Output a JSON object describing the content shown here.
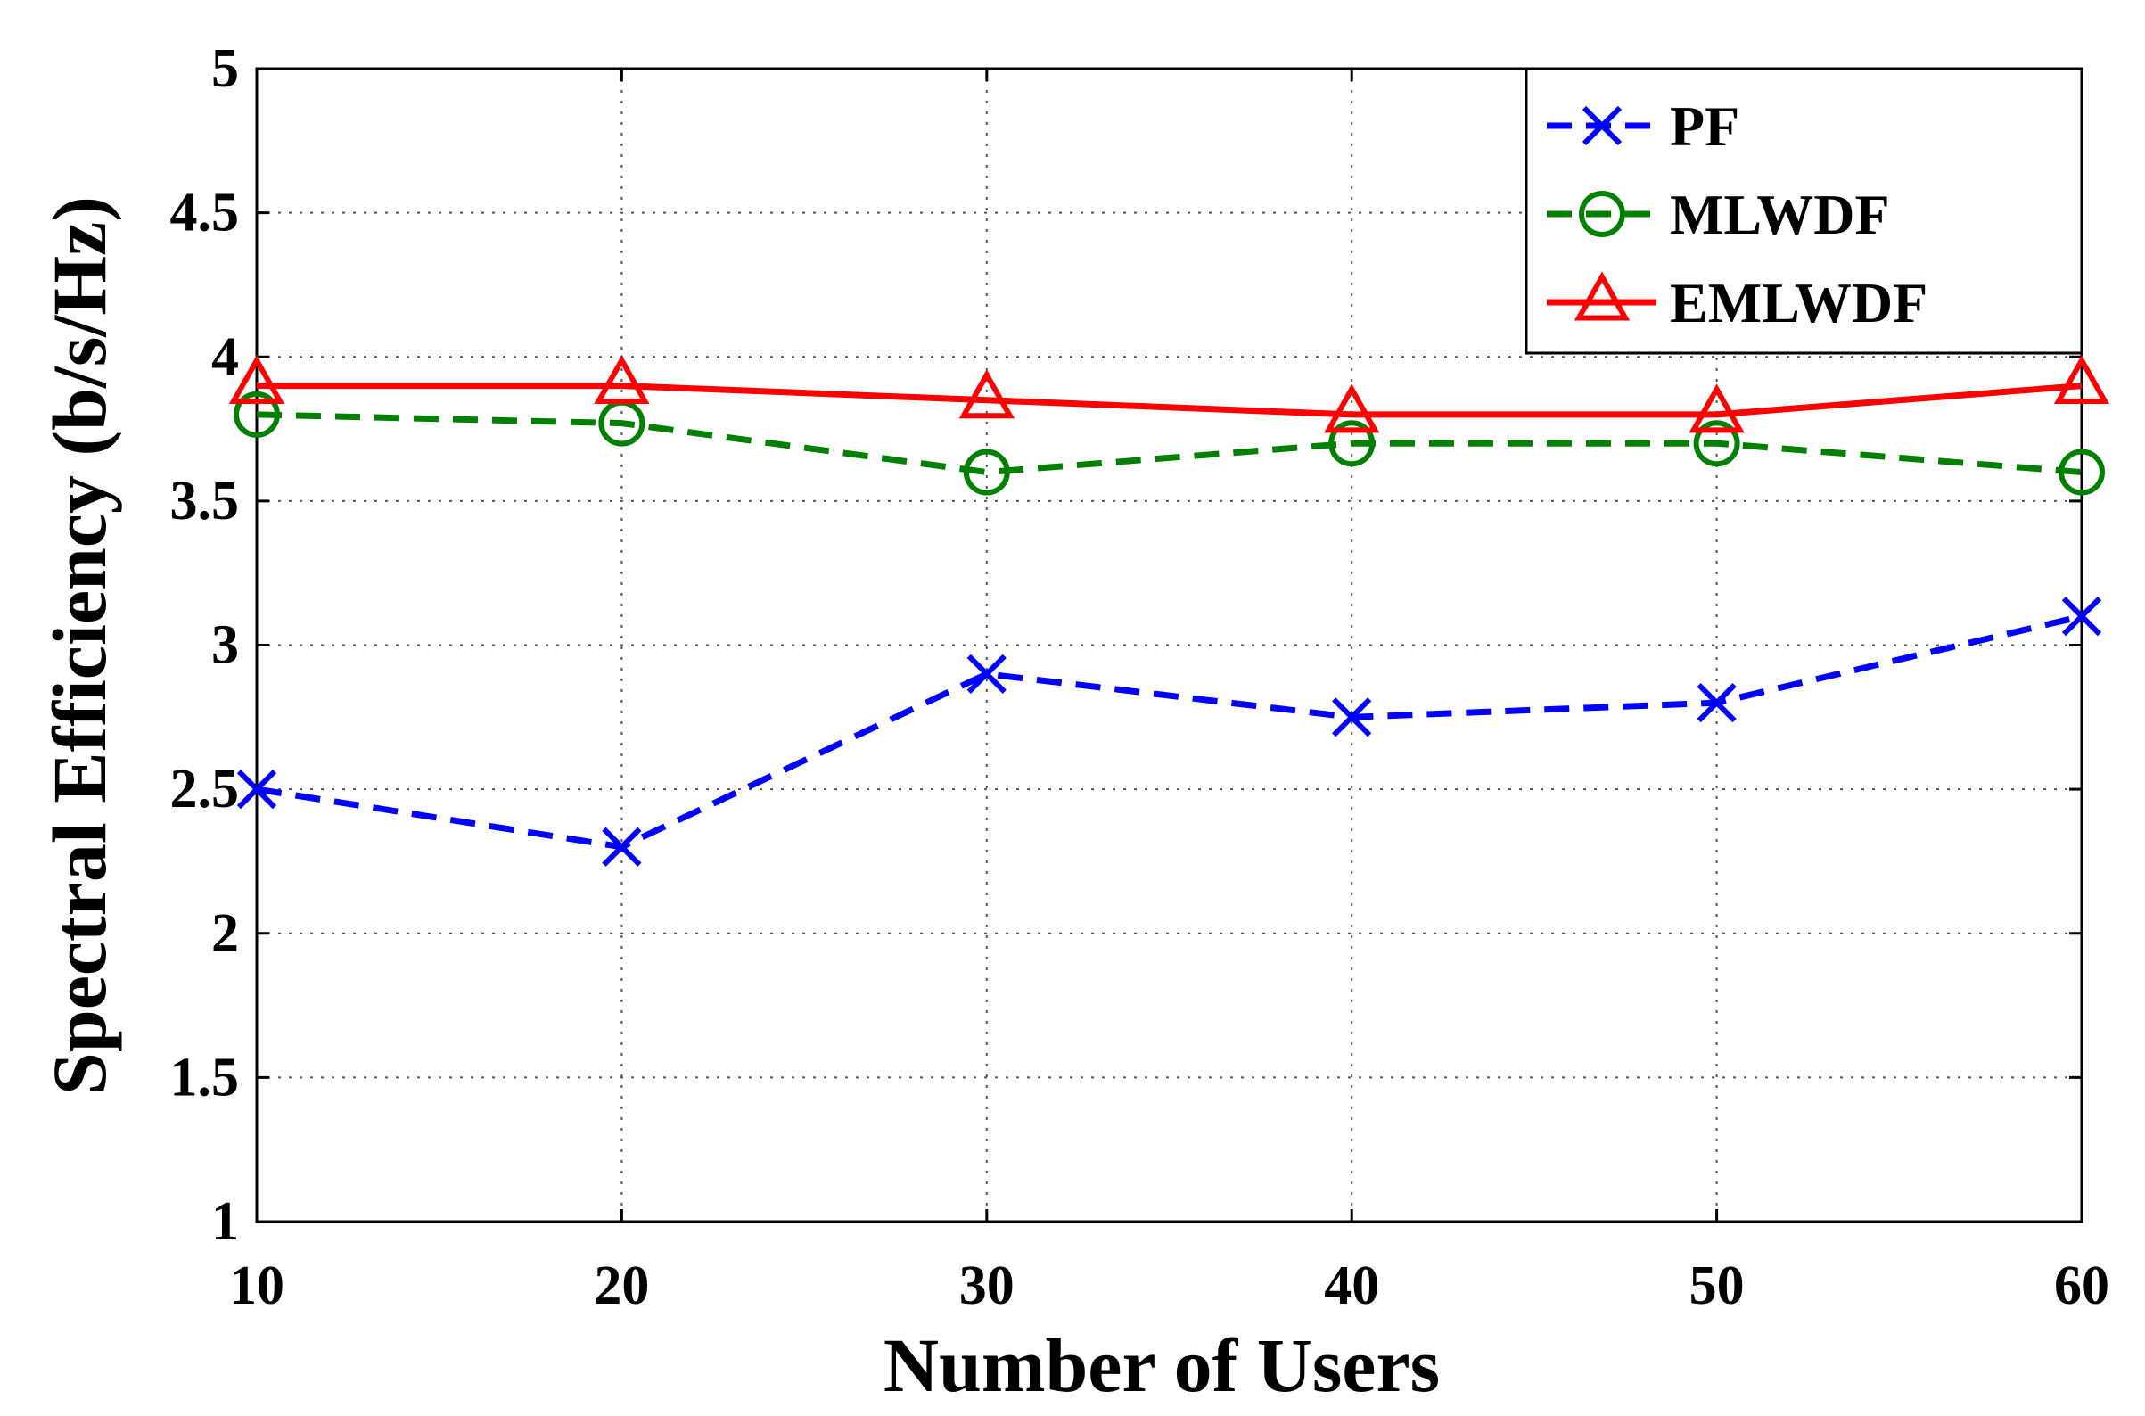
{
  "chart_data": {
    "type": "line",
    "title": "",
    "xlabel": "Number of Users",
    "ylabel": "Spectral Efficiency (b/s/Hz)",
    "x": [
      10,
      20,
      30,
      40,
      50,
      60
    ],
    "xticks": [
      "10",
      "20",
      "30",
      "40",
      "50",
      "60"
    ],
    "yticks": [
      "1",
      "1.5",
      "2",
      "2.5",
      "3",
      "3.5",
      "4",
      "4.5",
      "5"
    ],
    "xlim": [
      10,
      60
    ],
    "ylim": [
      1,
      5
    ],
    "grid": true,
    "legend_position": "top-right",
    "series": [
      {
        "name": "PF",
        "color": "#0000ff",
        "marker": "x",
        "line_style": "dashed",
        "values": [
          2.5,
          2.3,
          2.9,
          2.75,
          2.8,
          3.1
        ]
      },
      {
        "name": "MLWDF",
        "color": "#008000",
        "marker": "circle",
        "line_style": "dashed",
        "values": [
          3.8,
          3.77,
          3.6,
          3.7,
          3.7,
          3.6
        ]
      },
      {
        "name": "EMLWDF",
        "color": "#ff0000",
        "marker": "triangle",
        "line_style": "solid",
        "values": [
          3.9,
          3.9,
          3.85,
          3.8,
          3.8,
          3.9
        ]
      }
    ]
  }
}
